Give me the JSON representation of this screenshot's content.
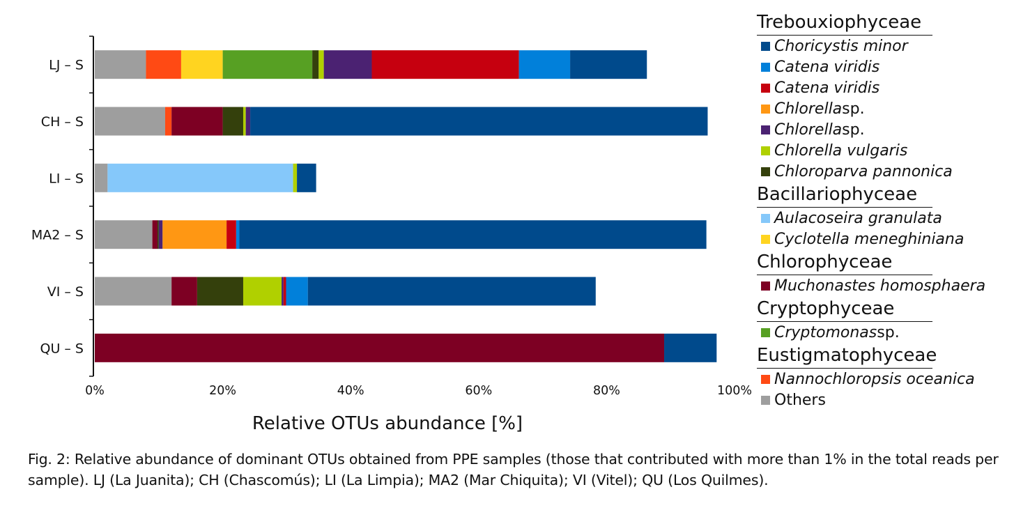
{
  "chart_data": {
    "type": "bar",
    "orientation": "horizontal",
    "stacked": true,
    "xlabel": "Relative OTUs abundance [%]",
    "xlim": [
      0,
      100
    ],
    "x_ticks": [
      "0%",
      "20%",
      "40%",
      "60%",
      "80%",
      "100%"
    ],
    "grid": false,
    "legend_position": "right",
    "categories": [
      "LJ – S",
      "CH – S",
      "LI – S",
      "MA2 – S",
      "VI – S",
      "QU – S"
    ],
    "series": [
      {
        "name": "Others",
        "color": "#9e9e9e",
        "values": [
          8,
          11,
          2,
          9,
          12,
          0
        ]
      },
      {
        "name": "Nannochloropsis oceanica",
        "color": "#ff4a14",
        "values": [
          5.5,
          1,
          0,
          0,
          0,
          0
        ]
      },
      {
        "name": "Aulacoseira granulata",
        "color": "#85c8fa",
        "values": [
          0,
          0,
          29,
          0,
          0,
          0
        ]
      },
      {
        "name": "Cyclotella meneghiniana",
        "color": "#ffd420",
        "values": [
          6.5,
          0,
          0,
          0,
          0,
          0
        ]
      },
      {
        "name": "Cryptomonas sp.",
        "color": "#57a023",
        "values": [
          14,
          0,
          0,
          0,
          0,
          0
        ]
      },
      {
        "name": "Muchonastes homosphaera",
        "color": "#7d0023",
        "values": [
          0,
          8,
          0,
          0.8,
          4,
          89
        ]
      },
      {
        "name": "Chloroparva pannonica",
        "color": "#34400c",
        "values": [
          1,
          3.2,
          0,
          0.2,
          7.2,
          0
        ]
      },
      {
        "name": "Chlorella vulgaris",
        "color": "#b0d000",
        "values": [
          0.8,
          0.4,
          0.6,
          0,
          6,
          0
        ]
      },
      {
        "name": "Chlorella sp.",
        "color": "#4b2272",
        "values": [
          7.5,
          0.7,
          0,
          0.6,
          0.3,
          0
        ]
      },
      {
        "name": "Chlorella sp.",
        "color": "#ff9713",
        "values": [
          0,
          0,
          0,
          10,
          0,
          0
        ]
      },
      {
        "name": "Catena viridis",
        "color": "#c6000f",
        "values": [
          23,
          0,
          0,
          1.5,
          0.4,
          0
        ]
      },
      {
        "name": "Catena viridis",
        "color": "#0180da",
        "values": [
          8,
          0,
          0,
          0.5,
          3.4,
          0
        ]
      },
      {
        "name": "Choricystis minor",
        "color": "#004a8c",
        "values": [
          12,
          71.5,
          3,
          73,
          45,
          8.2
        ]
      }
    ]
  },
  "legend": [
    {
      "group": "Trebouxiophyceae",
      "items": [
        {
          "name": "Choricystis minor",
          "species_suffix": "",
          "color": "#004a8c"
        },
        {
          "name": "Catena viridis",
          "species_suffix": "",
          "color": "#0180da"
        },
        {
          "name": "Catena viridis",
          "species_suffix": "",
          "color": "#c6000f"
        },
        {
          "name": "Chlorella",
          "species_suffix": " sp.",
          "color": "#ff9713"
        },
        {
          "name": "Chlorella",
          "species_suffix": " sp.",
          "color": "#4b2272"
        },
        {
          "name": "Chlorella vulgaris",
          "species_suffix": "",
          "color": "#b0d000"
        },
        {
          "name": "Chloroparva pannonica",
          "species_suffix": "",
          "color": "#34400c"
        }
      ]
    },
    {
      "group": "Bacillariophyceae",
      "items": [
        {
          "name": "Aulacoseira granulata",
          "species_suffix": "",
          "color": "#85c8fa"
        },
        {
          "name": "Cyclotella meneghiniana",
          "species_suffix": "",
          "color": "#ffd420"
        }
      ]
    },
    {
      "group": "Chlorophyceae",
      "items": [
        {
          "name": "Muchonastes homosphaera",
          "species_suffix": "",
          "color": "#7d0023"
        }
      ]
    },
    {
      "group": "Cryptophyceae",
      "items": [
        {
          "name": "Cryptomonas",
          "species_suffix": " sp.",
          "color": "#57a023"
        }
      ]
    },
    {
      "group": "Eustigmatophyceae",
      "items": [
        {
          "name": "Nannochloropsis oceanica",
          "species_suffix": "",
          "color": "#ff4a14"
        },
        {
          "name": "Others",
          "species_suffix": "",
          "color": "#9e9e9e",
          "plain": true
        }
      ]
    }
  ],
  "caption": "Fig. 2: Relative abundance of dominant OTUs obtained from PPE samples (those that contributed with more than 1% in the total reads per sample). LJ (La Juanita); CH (Chascomús); LI (La Limpia); MA2 (Mar Chiquita); VI (Vitel); QU (Los Quilmes)."
}
